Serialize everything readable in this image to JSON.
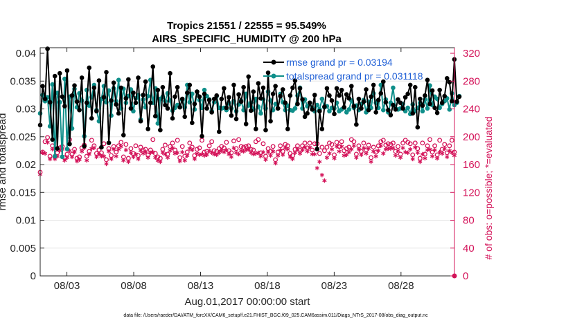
{
  "chart_data": {
    "type": "line",
    "title": "Tropics 21551 / 22555 = 95.549%",
    "subtitle": "AIRS_SPECIFIC_HUMIDITY @ 200 hPa",
    "xlabel": "Aug.01,2017 00:00:00 start",
    "ylabel_left": "rmse and totalspread",
    "ylabel_right": "# of obs: o=possible; *=evaluated",
    "footer": "data file: /Users/raeder/DAI/ATM_forcXX/CAM6_setup/f.e21.FHIST_BGC.f09_025.CAM6assim.011/Diags_NTrS_2017-08/obs_diag_output.nc",
    "xlim": [
      1.0,
      32.0
    ],
    "ylim_left": [
      0,
      0.041
    ],
    "ylim_right": [
      0,
      328
    ],
    "x_ticks": [
      3,
      8,
      13,
      18,
      23,
      28
    ],
    "x_tick_labels": [
      "08/03",
      "08/08",
      "08/13",
      "08/18",
      "08/23",
      "08/28"
    ],
    "y_ticks_left": [
      0,
      0.005,
      0.01,
      0.015,
      0.02,
      0.025,
      0.03,
      0.035,
      0.04
    ],
    "y_tick_labels_left": [
      "0",
      "0.005",
      "0.01",
      "0.015",
      "0.02",
      "0.025",
      "0.03",
      "0.035",
      "0.04"
    ],
    "y_ticks_right": [
      0,
      40,
      80,
      120,
      160,
      200,
      240,
      280,
      320
    ],
    "y_tick_labels_right": [
      "0",
      "40",
      "80",
      "120",
      "160",
      "200",
      "240",
      "280",
      "320"
    ],
    "legend": {
      "position": "top-right",
      "entries": [
        "rmse grand pr = 0.03194",
        "totalspread grand pr = 0.031118"
      ]
    },
    "colors": {
      "rmse": "#000000",
      "spread": "#0f8f8a",
      "obs": "#d4145a",
      "grid": "#e6e6e6"
    },
    "series": [
      {
        "name": "rmse",
        "axis": "left",
        "values": [
          0.0271,
          0.0341,
          0.0318,
          0.0408,
          0.0312,
          0.0245,
          0.0359,
          0.0229,
          0.0364,
          0.0322,
          0.0305,
          0.0369,
          0.0237,
          0.0324,
          0.0342,
          0.0313,
          0.0298,
          0.0356,
          0.0233,
          0.0311,
          0.0374,
          0.0283,
          0.0338,
          0.0296,
          0.0351,
          0.0231,
          0.0321,
          0.0366,
          0.0239,
          0.0315,
          0.0347,
          0.0308,
          0.0292,
          0.0338,
          0.0253,
          0.0319,
          0.0353,
          0.0301,
          0.0329,
          0.0311,
          0.0356,
          0.0278,
          0.0325,
          0.0349,
          0.0264,
          0.0311,
          0.0376,
          0.0287,
          0.0334,
          0.0262,
          0.0339,
          0.0307,
          0.0301,
          0.0364,
          0.0283,
          0.0322,
          0.0339,
          0.0303,
          0.0318,
          0.0286,
          0.0329,
          0.0343,
          0.0275,
          0.0309,
          0.0331,
          0.0322,
          0.0251,
          0.0327,
          0.0301,
          0.0316,
          0.0294,
          0.0318,
          0.0324,
          0.0259,
          0.0318,
          0.0337,
          0.0302,
          0.0321,
          0.0288,
          0.0343,
          0.0282,
          0.0326,
          0.0313,
          0.0339,
          0.0273,
          0.0358,
          0.0297,
          0.0331,
          0.0264,
          0.0346,
          0.0319,
          0.0338,
          0.0262,
          0.0365,
          0.0278,
          0.0327,
          0.0341,
          0.0301,
          0.0323,
          0.0335,
          0.0311,
          0.0264,
          0.0324,
          0.0338,
          0.0351,
          0.0309,
          0.0337,
          0.0317,
          0.0286,
          0.0292,
          0.0311,
          0.0299,
          0.0325,
          0.0228,
          0.0296,
          0.0264,
          0.0304,
          0.0337,
          0.0324,
          0.0315,
          0.0291,
          0.0337,
          0.0324,
          0.0334,
          0.0303,
          0.0326,
          0.0319,
          0.0341,
          0.0305,
          0.0272,
          0.0318,
          0.0301,
          0.0313,
          0.0335,
          0.0298,
          0.0322,
          0.0343,
          0.0294,
          0.0316,
          0.0328,
          0.0349,
          0.0312,
          0.0298,
          0.0289,
          0.0307,
          0.0299,
          0.0317,
          0.0311,
          0.0301,
          0.0321,
          0.0327,
          0.0343,
          0.0292,
          0.0339,
          0.0267,
          0.0318,
          0.0306,
          0.0324,
          0.0352,
          0.0309,
          0.0333,
          0.0302,
          0.0293,
          0.0334,
          0.0311,
          0.0323,
          0.0355,
          0.0348,
          0.0314,
          0.0389,
          0.0313,
          0.0322
        ],
        "x_start": 1.0,
        "x_step": 0.1834
      },
      {
        "name": "totalspread",
        "axis": "left",
        "values": [
          0.0292,
          0.0325,
          0.0314,
          0.0321,
          0.0269,
          0.0344,
          0.0215,
          0.0329,
          0.0312,
          0.0214,
          0.0354,
          0.0228,
          0.0322,
          0.0265,
          0.0336,
          0.0303,
          0.0328,
          0.0315,
          0.0251,
          0.0334,
          0.0306,
          0.0321,
          0.0343,
          0.0298,
          0.0278,
          0.0318,
          0.0341,
          0.0312,
          0.0333,
          0.0288,
          0.0337,
          0.0314,
          0.0352,
          0.0301,
          0.0336,
          0.0311,
          0.0323,
          0.0335,
          0.0296,
          0.0319,
          0.0325,
          0.0281,
          0.0317,
          0.0303,
          0.0323,
          0.0352,
          0.0311,
          0.0337,
          0.0274,
          0.0318,
          0.0322,
          0.0314,
          0.0328,
          0.0315,
          0.0297,
          0.0302,
          0.0307,
          0.0304,
          0.0316,
          0.0303,
          0.0343,
          0.0312,
          0.0327,
          0.0299,
          0.0331,
          0.0316,
          0.0302,
          0.0334,
          0.0323,
          0.0317,
          0.0296,
          0.0312,
          0.0323,
          0.0302,
          0.0301,
          0.0302,
          0.0298,
          0.0311,
          0.0301,
          0.0314,
          0.0296,
          0.0308,
          0.0315,
          0.0298,
          0.0327,
          0.0306,
          0.0311,
          0.0299,
          0.0318,
          0.0304,
          0.0292,
          0.0317,
          0.0301,
          0.0331,
          0.0315,
          0.0298,
          0.0309,
          0.0301,
          0.0327,
          0.0312,
          0.0298,
          0.0306,
          0.0298,
          0.0297,
          0.0301,
          0.0324,
          0.0338,
          0.0301,
          0.0317,
          0.0305,
          0.0311,
          0.0302,
          0.0296,
          0.0307,
          0.0299,
          0.0318,
          0.0303,
          0.0305,
          0.0296,
          0.0302,
          0.0301,
          0.0311,
          0.0296,
          0.0299,
          0.0303,
          0.0294,
          0.0299,
          0.0315,
          0.0302,
          0.0306,
          0.0298,
          0.0309,
          0.0316,
          0.0294,
          0.0313,
          0.0302,
          0.0328,
          0.0311,
          0.0302,
          0.0343,
          0.0298,
          0.0317,
          0.0294,
          0.0311,
          0.0338,
          0.0301,
          0.0299,
          0.0301,
          0.0309,
          0.0296,
          0.0302,
          0.0291,
          0.0308,
          0.0296,
          0.0302,
          0.0311,
          0.0296,
          0.0317,
          0.0301,
          0.0342,
          0.0307,
          0.0322,
          0.0318,
          0.0302,
          0.0309,
          0.0314,
          0.0319,
          0.0299,
          0.0328,
          0.0307,
          0.0311,
          0.0323
        ],
        "x_start": 1.0,
        "x_step": 0.1834
      },
      {
        "name": "obs_possible",
        "axis": "right",
        "marker": "o",
        "values": [
          149,
          178,
          193,
          199,
          172,
          187,
          171,
          177,
          184,
          186,
          170,
          175,
          196,
          175,
          182,
          169,
          171,
          184,
          188,
          172,
          179,
          195,
          187,
          176,
          181,
          177,
          190,
          167,
          183,
          173,
          186,
          178,
          187,
          192,
          171,
          189,
          169,
          183,
          176,
          187,
          173,
          185,
          181,
          182,
          174,
          181,
          196,
          176,
          171,
          169,
          182,
          188,
          175,
          186,
          191,
          181,
          195,
          170,
          186,
          172,
          178,
          191,
          185,
          173,
          182,
          184,
          195,
          178,
          179,
          187,
          193,
          180,
          179,
          183,
          186,
          184,
          192,
          180,
          177,
          194,
          183,
          196,
          186,
          185,
          186,
          187,
          182,
          181,
          193,
          196,
          177,
          190,
          172,
          183,
          179,
          186,
          167,
          178,
          187,
          179,
          189,
          187,
          176,
          173,
          182,
          187,
          181,
          187,
          191,
          184,
          191,
          181,
          190,
          190,
          176,
          185,
          180,
          185,
          191,
          189,
          174,
          192,
          186,
          193,
          180,
          183,
          185,
          196,
          193,
          175,
          187,
          179,
          191,
          181,
          188,
          170,
          185,
          178,
          187,
          193,
          195,
          188,
          190,
          189,
          191,
          179,
          186,
          175,
          191,
          195,
          192,
          190,
          174,
          191,
          183,
          169,
          191,
          175,
          187,
          196,
          178,
          187,
          174,
          195,
          182,
          189,
          177,
          187,
          195,
          178
        ],
        "x_start": 1.0,
        "x_step": 0.1834
      },
      {
        "name": "obs_evaluated",
        "axis": "right",
        "marker": "*",
        "values": [
          146,
          177,
          176,
          192,
          168,
          182,
          168,
          172,
          180,
          182,
          166,
          170,
          180,
          171,
          178,
          165,
          167,
          179,
          184,
          166,
          175,
          183,
          184,
          171,
          175,
          172,
          172,
          161,
          179,
          168,
          182,
          172,
          182,
          186,
          166,
          181,
          164,
          177,
          171,
          175,
          168,
          180,
          176,
          178,
          170,
          177,
          178,
          170,
          166,
          164,
          177,
          175,
          170,
          180,
          184,
          176,
          177,
          165,
          178,
          166,
          173,
          183,
          181,
          168,
          176,
          174,
          175,
          173,
          174,
          180,
          177,
          175,
          174,
          177,
          180,
          178,
          181,
          175,
          171,
          184,
          177,
          175,
          180,
          179,
          181,
          182,
          177,
          175,
          176,
          177,
          172,
          178,
          167,
          178,
          173,
          179,
          162,
          173,
          181,
          174,
          184,
          182,
          171,
          168,
          177,
          182,
          176,
          181,
          185,
          179,
          185,
          175,
          175,
          155,
          164,
          145,
          137,
          170,
          176,
          182,
          169,
          186,
          179,
          186,
          173,
          174,
          178,
          182,
          187,
          170,
          182,
          174,
          184,
          176,
          183,
          164,
          179,
          172,
          180,
          187,
          176,
          182,
          183,
          183,
          184,
          173,
          180,
          170,
          184,
          178,
          177,
          182,
          168,
          185,
          177,
          164,
          175,
          169,
          181,
          182,
          172,
          181,
          169,
          178,
          176,
          183,
          171,
          180,
          177,
          173
        ],
        "x_start": 1.0,
        "x_step": 0.1834
      }
    ]
  }
}
